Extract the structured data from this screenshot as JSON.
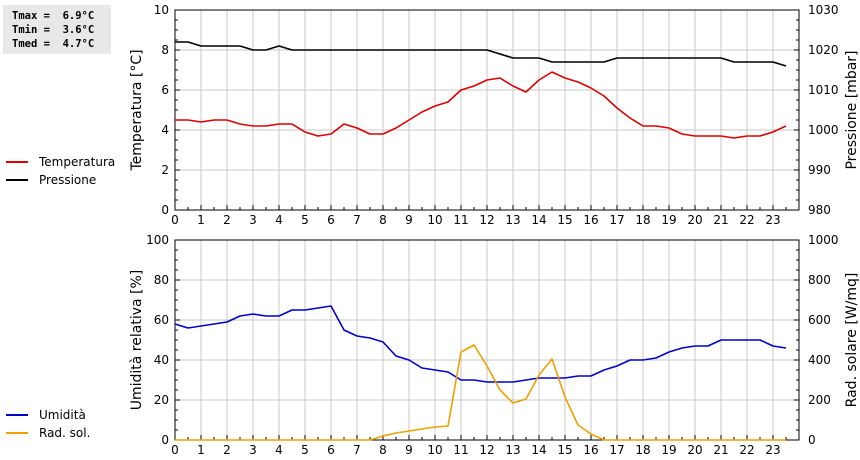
{
  "stats": {
    "tmax": "Tmax =  6.9°C",
    "tmin": "Tmin =  3.6°C",
    "tmed": "Tmed =  4.7°C"
  },
  "colors": {
    "temperature": "#dd0000",
    "pressure": "#000000",
    "humidity": "#0000cc",
    "radiation": "#f0a000",
    "grid": "#c8c8c8"
  },
  "chart_data": [
    {
      "type": "line",
      "xlabel": "",
      "ylabel": "Temperatura [°C]",
      "y2label": "Pressione [mbar]",
      "xlim": [
        0,
        24
      ],
      "ylim": [
        0,
        10
      ],
      "y2lim": [
        980,
        1030
      ],
      "xticks": [
        "0",
        "1",
        "2",
        "3",
        "4",
        "5",
        "6",
        "7",
        "8",
        "9",
        "10",
        "11",
        "12",
        "13",
        "14",
        "15",
        "16",
        "17",
        "18",
        "19",
        "20",
        "21",
        "22",
        "23"
      ],
      "yticks": [
        "0",
        "2",
        "4",
        "6",
        "8",
        "10"
      ],
      "y2ticks": [
        "980",
        "990",
        "1000",
        "1010",
        "1020",
        "1030"
      ],
      "grid": true,
      "legend": "left",
      "series": [
        {
          "name": "Temperatura",
          "axis": "left",
          "x": [
            0,
            0.5,
            1,
            1.5,
            2,
            2.5,
            3,
            3.5,
            4,
            4.5,
            5,
            5.5,
            6,
            6.5,
            7,
            7.5,
            8,
            8.5,
            9,
            9.5,
            10,
            10.5,
            11,
            11.5,
            12,
            12.5,
            13,
            13.5,
            14,
            14.5,
            15,
            15.5,
            16,
            16.5,
            17,
            17.5,
            18,
            18.5,
            19,
            19.5,
            20,
            20.5,
            21,
            21.5,
            22,
            22.5,
            23,
            23.5
          ],
          "y": [
            4.5,
            4.5,
            4.4,
            4.5,
            4.5,
            4.3,
            4.2,
            4.2,
            4.3,
            4.3,
            3.9,
            3.7,
            3.8,
            4.3,
            4.1,
            3.8,
            3.8,
            4.1,
            4.5,
            4.9,
            5.2,
            5.4,
            6.0,
            6.2,
            6.5,
            6.6,
            6.2,
            5.9,
            6.5,
            6.9,
            6.6,
            6.4,
            6.1,
            5.7,
            5.1,
            4.6,
            4.2,
            4.2,
            4.1,
            3.8,
            3.7,
            3.7,
            3.7,
            3.6,
            3.7,
            3.7,
            3.9,
            4.2
          ]
        },
        {
          "name": "Pressione",
          "axis": "right",
          "x": [
            0,
            0.5,
            1,
            1.5,
            2,
            2.5,
            3,
            3.5,
            4,
            4.5,
            5,
            5.5,
            6,
            6.5,
            7,
            7.5,
            8,
            8.5,
            9,
            9.5,
            10,
            10.5,
            11,
            11.5,
            12,
            12.5,
            13,
            13.5,
            14,
            14.5,
            15,
            15.5,
            16,
            16.5,
            17,
            17.5,
            18,
            18.5,
            19,
            19.5,
            20,
            20.5,
            21,
            21.5,
            22,
            22.5,
            23,
            23.5
          ],
          "y": [
            1022,
            1022,
            1021,
            1021,
            1021,
            1021,
            1020,
            1020,
            1021,
            1020,
            1020,
            1020,
            1020,
            1020,
            1020,
            1020,
            1020,
            1020,
            1020,
            1020,
            1020,
            1020,
            1020,
            1020,
            1020,
            1019,
            1018,
            1018,
            1018,
            1017,
            1017,
            1017,
            1017,
            1017,
            1018,
            1018,
            1018,
            1018,
            1018,
            1018,
            1018,
            1018,
            1018,
            1017,
            1017,
            1017,
            1017,
            1016
          ]
        }
      ]
    },
    {
      "type": "line",
      "xlabel": "",
      "ylabel": "Umidità relativa [%]",
      "y2label": "Rad. solare [W/mq]",
      "xlim": [
        0,
        24
      ],
      "ylim": [
        0,
        100
      ],
      "y2lim": [
        0,
        1000
      ],
      "xticks": [
        "0",
        "1",
        "2",
        "3",
        "4",
        "5",
        "6",
        "7",
        "8",
        "9",
        "10",
        "11",
        "12",
        "13",
        "14",
        "15",
        "16",
        "17",
        "18",
        "19",
        "20",
        "21",
        "22",
        "23"
      ],
      "yticks": [
        "0",
        "20",
        "40",
        "60",
        "80",
        "100"
      ],
      "y2ticks": [
        "0",
        "200",
        "400",
        "600",
        "800",
        "1000"
      ],
      "grid": true,
      "legend": "left",
      "series": [
        {
          "name": "Umidità",
          "axis": "left",
          "x": [
            0,
            0.5,
            1,
            1.5,
            2,
            2.5,
            3,
            3.5,
            4,
            4.5,
            5,
            5.5,
            6,
            6.5,
            7,
            7.5,
            8,
            8.5,
            9,
            9.5,
            10,
            10.5,
            11,
            11.5,
            12,
            12.5,
            13,
            13.5,
            14,
            14.5,
            15,
            15.5,
            16,
            16.5,
            17,
            17.5,
            18,
            18.5,
            19,
            19.5,
            20,
            20.5,
            21,
            21.5,
            22,
            22.5,
            23,
            23.5
          ],
          "y": [
            58,
            56,
            57,
            58,
            59,
            62,
            63,
            62,
            62,
            65,
            65,
            66,
            67,
            55,
            52,
            51,
            49,
            42,
            40,
            36,
            35,
            34,
            30,
            30,
            29,
            29,
            29,
            30,
            31,
            31,
            31,
            32,
            32,
            35,
            37,
            40,
            40,
            41,
            44,
            46,
            47,
            47,
            50,
            50,
            50,
            50,
            47,
            46
          ]
        },
        {
          "name": "Rad. sol.",
          "axis": "right",
          "x": [
            0,
            0.5,
            1,
            1.5,
            2,
            2.5,
            3,
            3.5,
            4,
            4.5,
            5,
            5.5,
            6,
            6.5,
            7,
            7.5,
            8,
            8.5,
            9,
            9.5,
            10,
            10.5,
            11,
            11.5,
            12,
            12.5,
            13,
            13.5,
            14,
            14.5,
            15,
            15.5,
            16,
            16.5,
            17,
            17.5,
            18,
            18.5,
            19,
            19.5,
            20,
            20.5,
            21,
            21.5,
            22,
            22.5,
            23,
            23.5
          ],
          "y": [
            0,
            0,
            0,
            0,
            0,
            0,
            0,
            0,
            0,
            0,
            0,
            0,
            0,
            0,
            0,
            0,
            20,
            35,
            45,
            55,
            65,
            70,
            440,
            475,
            370,
            250,
            185,
            205,
            325,
            405,
            215,
            75,
            30,
            0,
            0,
            0,
            0,
            0,
            0,
            0,
            0,
            0,
            0,
            0,
            0,
            0,
            0,
            0
          ]
        }
      ]
    }
  ]
}
